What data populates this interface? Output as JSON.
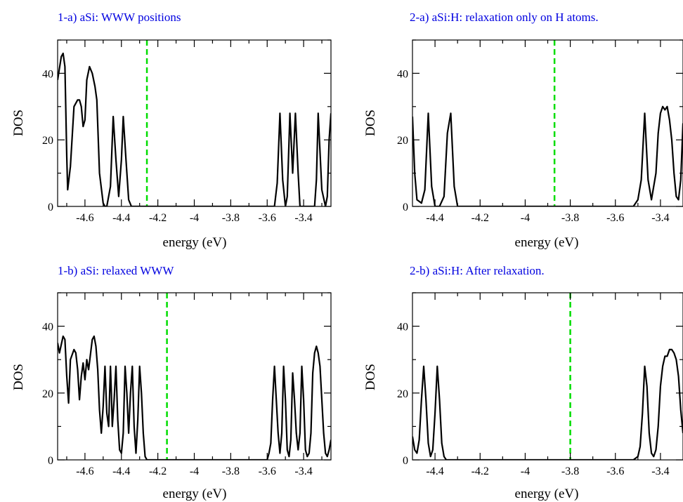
{
  "chart_data": [
    {
      "type": "line",
      "title": "1-a) aSi: WWW positions",
      "xlabel": "energy (eV)",
      "ylabel": "DOS",
      "xlim": [
        -4.75,
        -3.25
      ],
      "ylim": [
        0,
        50
      ],
      "xticks": [
        "-4.6",
        "-4.4",
        "-4.2",
        "-4",
        "-3.8",
        "-3.6",
        "-3.4"
      ],
      "xtick_values": [
        -4.6,
        -4.4,
        -4.2,
        -4.0,
        -3.8,
        -3.6,
        -3.4
      ],
      "yticks": [
        "0",
        "20",
        "40"
      ],
      "ytick_values": [
        0,
        20,
        40
      ],
      "fermi_level": -4.26,
      "series": [
        {
          "x": [
            -4.75,
            -4.73,
            -4.72,
            -4.71,
            -4.7,
            -4.695,
            -4.68,
            -4.66,
            -4.64,
            -4.63,
            -4.62,
            -4.61,
            -4.6,
            -4.59,
            -4.575,
            -4.56,
            -4.545,
            -4.535,
            -4.52,
            -4.5,
            -4.49,
            -4.48,
            -4.46,
            -4.445,
            -4.43,
            -4.415,
            -4.4,
            -4.39,
            -4.375,
            -4.36,
            -4.345,
            -4.33,
            -4.32,
            -4.3,
            -4.25,
            -4.0,
            -3.7,
            -3.58,
            -3.56,
            -3.545,
            -3.53,
            -3.515,
            -3.5,
            -3.49,
            -3.475,
            -3.46,
            -3.445,
            -3.43,
            -3.42,
            -3.405,
            -3.39,
            -3.38,
            -3.36,
            -3.35,
            -3.34,
            -3.33,
            -3.32,
            -3.3,
            -3.28,
            -3.27,
            -3.26,
            -3.25
          ],
          "y": [
            38,
            45,
            46,
            42,
            15,
            5,
            12,
            30,
            32,
            32,
            30,
            24,
            26,
            38,
            42,
            40,
            36,
            32,
            10,
            1,
            0,
            0,
            6,
            27,
            14,
            3,
            14,
            27,
            14,
            2,
            0,
            0,
            0,
            0,
            0,
            0,
            0,
            0,
            0,
            7,
            28,
            8,
            0,
            3,
            28,
            10,
            28,
            10,
            0,
            0,
            0,
            0,
            0,
            0,
            0,
            8,
            28,
            5,
            0,
            3,
            20,
            28
          ]
        }
      ]
    },
    {
      "type": "line",
      "title": "2-a) aSi:H: relaxation only on H atoms.",
      "xlabel": "energy (eV)",
      "ylabel": "DOS",
      "xlim": [
        -4.5,
        -3.3
      ],
      "ylim": [
        0,
        50
      ],
      "xticks": [
        "-4.4",
        "-4.2",
        "-4",
        "-3.8",
        "-3.6",
        "-3.4"
      ],
      "xtick_values": [
        -4.4,
        -4.2,
        -4.0,
        -3.8,
        -3.6,
        -3.4
      ],
      "yticks": [
        "0",
        "20",
        "40"
      ],
      "ytick_values": [
        0,
        20,
        40
      ],
      "fermi_level": -3.87,
      "series": [
        {
          "x": [
            -4.5,
            -4.49,
            -4.48,
            -4.46,
            -4.445,
            -4.43,
            -4.415,
            -4.4,
            -4.38,
            -4.36,
            -4.345,
            -4.33,
            -4.315,
            -4.3,
            -4.28,
            -4.25,
            -4.0,
            -3.6,
            -3.52,
            -3.5,
            -3.485,
            -3.47,
            -3.455,
            -3.44,
            -3.42,
            -3.41,
            -3.4,
            -3.39,
            -3.38,
            -3.37,
            -3.36,
            -3.35,
            -3.34,
            -3.33,
            -3.32,
            -3.31,
            -3.3
          ],
          "y": [
            27,
            10,
            2,
            1,
            5,
            28,
            6,
            0,
            0,
            3,
            22,
            28,
            6,
            0,
            0,
            0,
            0,
            0,
            0,
            2,
            8,
            28,
            8,
            2,
            10,
            22,
            28,
            30,
            29,
            30,
            26,
            20,
            10,
            3,
            2,
            8,
            25
          ]
        }
      ]
    },
    {
      "type": "line",
      "title": "1-b) aSi: relaxed WWW",
      "xlabel": "energy (eV)",
      "ylabel": "DOS",
      "xlim": [
        -4.75,
        -3.25
      ],
      "ylim": [
        0,
        50
      ],
      "xticks": [
        "-4.6",
        "-4.4",
        "-4.2",
        "-4",
        "-3.8",
        "-3.6",
        "-3.4"
      ],
      "xtick_values": [
        -4.6,
        -4.4,
        -4.2,
        -4.0,
        -3.8,
        -3.6,
        -3.4
      ],
      "yticks": [
        "0",
        "20",
        "40"
      ],
      "ytick_values": [
        0,
        20,
        40
      ],
      "fermi_level": -4.15,
      "series": [
        {
          "x": [
            -4.75,
            -4.74,
            -4.72,
            -4.71,
            -4.7,
            -4.69,
            -4.68,
            -4.66,
            -4.65,
            -4.64,
            -4.63,
            -4.62,
            -4.61,
            -4.6,
            -4.59,
            -4.58,
            -4.56,
            -4.55,
            -4.54,
            -4.53,
            -4.52,
            -4.51,
            -4.5,
            -4.49,
            -4.48,
            -4.47,
            -4.46,
            -4.455,
            -4.45,
            -4.44,
            -4.43,
            -4.42,
            -4.41,
            -4.4,
            -4.39,
            -4.38,
            -4.37,
            -4.36,
            -4.35,
            -4.34,
            -4.33,
            -4.32,
            -4.31,
            -4.3,
            -4.29,
            -4.28,
            -4.27,
            -4.26,
            -4.25,
            -4.24,
            -4.2,
            -3.7,
            -3.64,
            -3.62,
            -3.6,
            -3.59,
            -3.58,
            -3.57,
            -3.56,
            -3.55,
            -3.54,
            -3.53,
            -3.52,
            -3.51,
            -3.5,
            -3.49,
            -3.48,
            -3.47,
            -3.46,
            -3.45,
            -3.44,
            -3.43,
            -3.42,
            -3.41,
            -3.4,
            -3.39,
            -3.38,
            -3.37,
            -3.36,
            -3.35,
            -3.34,
            -3.33,
            -3.32,
            -3.31,
            -3.3,
            -3.29,
            -3.28,
            -3.27,
            -3.26,
            -3.25
          ],
          "y": [
            35,
            32,
            37,
            36,
            25,
            17,
            30,
            33,
            32,
            27,
            18,
            25,
            29,
            24,
            30,
            27,
            36,
            37,
            34,
            27,
            15,
            8,
            16,
            28,
            14,
            10,
            28,
            20,
            10,
            18,
            28,
            12,
            3,
            2,
            8,
            28,
            20,
            8,
            20,
            28,
            10,
            2,
            12,
            28,
            20,
            8,
            1,
            0,
            0,
            0,
            0,
            0,
            0,
            0,
            0,
            2,
            5,
            18,
            28,
            18,
            8,
            2,
            8,
            28,
            18,
            3,
            1,
            6,
            26,
            18,
            8,
            3,
            8,
            28,
            18,
            3,
            1,
            2,
            8,
            26,
            32,
            34,
            32,
            28,
            18,
            8,
            2,
            1,
            3,
            6
          ]
        }
      ]
    },
    {
      "type": "line",
      "title": "2-b) aSi:H: After relaxation.",
      "xlabel": "energy (eV)",
      "ylabel": "DOS",
      "xlim": [
        -4.5,
        -3.3
      ],
      "ylim": [
        0,
        50
      ],
      "xticks": [
        "-4.4",
        "-4.2",
        "-4",
        "-3.8",
        "-3.6",
        "-3.4"
      ],
      "xtick_values": [
        -4.4,
        -4.2,
        -4.0,
        -3.8,
        -3.6,
        -3.4
      ],
      "yticks": [
        "0",
        "20",
        "40"
      ],
      "ytick_values": [
        0,
        20,
        40
      ],
      "fermi_level": -3.8,
      "series": [
        {
          "x": [
            -4.5,
            -4.49,
            -4.48,
            -4.47,
            -4.46,
            -4.45,
            -4.44,
            -4.43,
            -4.42,
            -4.41,
            -4.4,
            -4.39,
            -4.38,
            -4.37,
            -4.36,
            -4.35,
            -4.34,
            -4.3,
            -3.6,
            -3.52,
            -3.5,
            -3.49,
            -3.48,
            -3.47,
            -3.46,
            -3.45,
            -3.44,
            -3.43,
            -3.42,
            -3.41,
            -3.4,
            -3.39,
            -3.38,
            -3.37,
            -3.36,
            -3.35,
            -3.34,
            -3.33,
            -3.32,
            -3.31,
            -3.3
          ],
          "y": [
            7,
            3,
            2,
            6,
            18,
            28,
            18,
            5,
            1,
            3,
            14,
            28,
            18,
            5,
            1,
            0,
            0,
            0,
            0,
            0,
            1,
            4,
            14,
            28,
            22,
            8,
            2,
            1,
            3,
            10,
            22,
            28,
            31,
            31,
            33,
            33,
            32,
            30,
            25,
            15,
            8
          ]
        }
      ]
    }
  ]
}
